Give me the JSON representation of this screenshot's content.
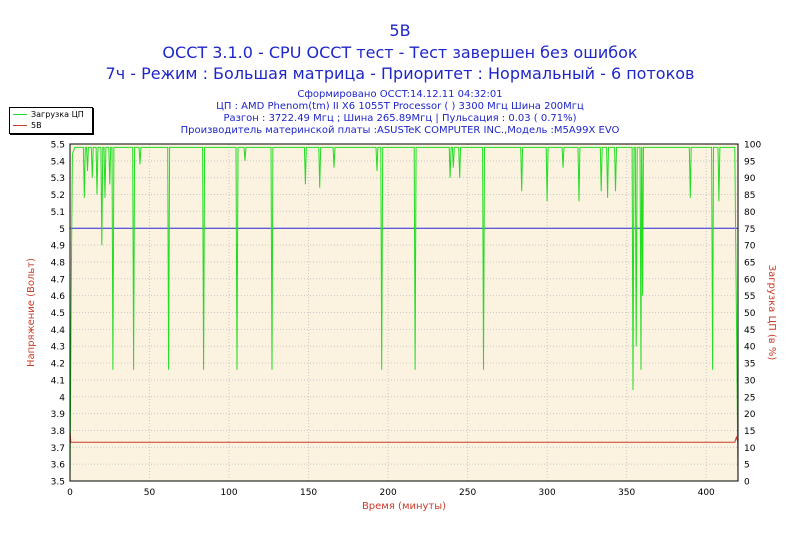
{
  "header": {
    "title_line1": "5В",
    "title_line2": "OCCT 3.1.0 - CPU OCCT тест - Тест завершен без ошибок",
    "title_line3": "7ч - Режим : Большая матрица - Приоритет : Нормальный - 6 потоков"
  },
  "info": {
    "generated": "Сформировано OCCT:14.12.11 04:32:01",
    "cpu": "ЦП : AMD Phenom(tm) II X6 1055T Processor (  ) 3300 Мгц Шина 200Мгц",
    "overclock": "Разгон : 3722.49 Мгц ; Шина 265.89Мгц | Пульсация : 0.03 ( 0.71%)",
    "board": "Производитель материнской платы :ASUSTeK COMPUTER INC.,Модель :M5A99X EVO"
  },
  "colors": {
    "plot_bg": "#fbf3e0",
    "load": "#22dd22",
    "voltage": "#c83c2a",
    "reference": "#2b2bd8",
    "axis_title_left": "#c83c2a",
    "axis_title_right": "#c83c2a",
    "tick_text": "#000000"
  },
  "chart_data": {
    "type": "line",
    "xlabel": "Время (минуты)",
    "ylabel_left": "Напряжение (Вольт)",
    "ylabel_right": "Загрузка ЦП (в %)",
    "xlim": [
      0,
      420
    ],
    "ylim_left": [
      3.5,
      5.5
    ],
    "ylim_right": [
      0,
      100
    ],
    "x_ticks": [
      0,
      50,
      100,
      150,
      200,
      250,
      300,
      350,
      400
    ],
    "y_ticks_left": [
      "5.5",
      "5.4",
      "5.3",
      "5.2",
      "5.1",
      "5",
      "4.9",
      "4.8",
      "4.7",
      "4.6",
      "4.5",
      "4.4",
      "4.3",
      "4.2",
      "4.1",
      "4",
      "3.9",
      "3.8",
      "3.7",
      "3.6",
      "3.5"
    ],
    "y_ticks_right": [
      "100",
      "95",
      "90",
      "85",
      "80",
      "75",
      "70",
      "65",
      "60",
      "55",
      "50",
      "45",
      "40",
      "35",
      "30",
      "25",
      "20",
      "15",
      "10",
      "5",
      "0"
    ],
    "grid": true,
    "legend": [
      "Загрузка ЦП",
      "5В"
    ],
    "reference_line": {
      "axis": "left",
      "value": 5.0
    },
    "series": [
      {
        "name": "5В",
        "axis": "left",
        "x": [
          0,
          0.5,
          1,
          418,
          419,
          420
        ],
        "y": [
          3.8,
          3.73,
          3.73,
          3.73,
          3.76,
          3.73
        ]
      },
      {
        "name": "Загрузка ЦП",
        "axis": "right",
        "baseline": 99,
        "start": [
          [
            0,
            0
          ],
          [
            0.5,
            35
          ],
          [
            1,
            70
          ],
          [
            1.5,
            97
          ],
          [
            3,
            99
          ]
        ],
        "end": [
          [
            418,
            99
          ],
          [
            419,
            50
          ],
          [
            420,
            0
          ]
        ],
        "dips": [
          [
            9,
            84
          ],
          [
            11,
            92
          ],
          [
            14,
            90
          ],
          [
            17,
            85
          ],
          [
            20,
            70
          ],
          [
            22,
            84
          ],
          [
            25,
            88
          ],
          [
            27,
            33
          ],
          [
            40,
            33
          ],
          [
            44,
            94
          ],
          [
            62,
            33
          ],
          [
            84,
            33
          ],
          [
            105,
            33
          ],
          [
            110,
            95
          ],
          [
            127,
            33
          ],
          [
            148,
            88
          ],
          [
            157,
            87
          ],
          [
            166,
            93
          ],
          [
            193,
            92
          ],
          [
            196,
            33
          ],
          [
            217,
            33
          ],
          [
            239,
            90
          ],
          [
            241,
            93
          ],
          [
            245,
            90
          ],
          [
            260,
            33
          ],
          [
            284,
            86
          ],
          [
            300,
            83
          ],
          [
            310,
            93
          ],
          [
            320,
            83
          ],
          [
            334,
            86
          ],
          [
            338,
            84
          ],
          [
            343,
            86
          ],
          [
            354,
            27
          ],
          [
            356,
            40
          ],
          [
            359,
            33
          ],
          [
            360,
            55
          ],
          [
            390,
            84
          ],
          [
            404,
            33
          ],
          [
            408,
            83
          ]
        ]
      }
    ]
  }
}
